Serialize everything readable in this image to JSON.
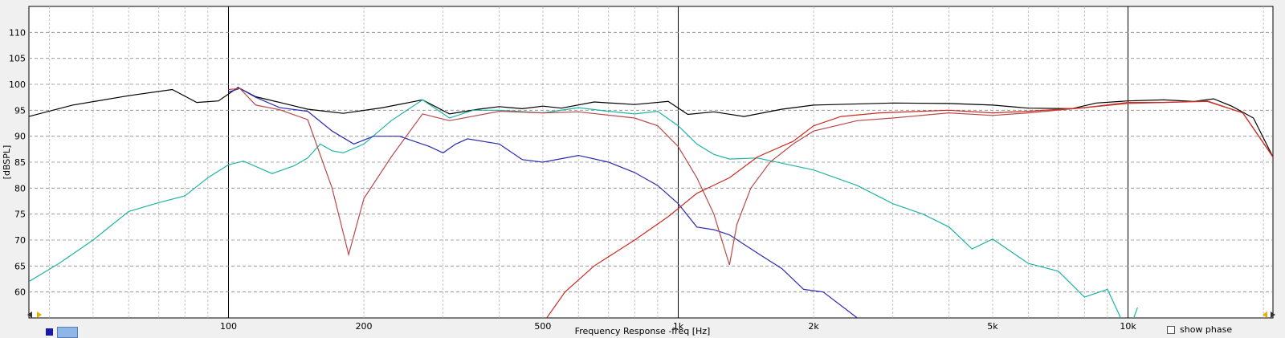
{
  "chart_data": {
    "type": "line",
    "xlabel": "Frequency Response -freq [Hz]",
    "ylabel": "[dBSPL]",
    "xscale": "log",
    "xlim": [
      36,
      21000
    ],
    "ylim": [
      55,
      115
    ],
    "yticks": [
      60,
      65,
      70,
      75,
      80,
      85,
      90,
      95,
      100,
      105,
      110
    ],
    "xtick_labels": [
      {
        "value": 100,
        "label": "100"
      },
      {
        "value": 200,
        "label": "200"
      },
      {
        "value": 500,
        "label": "500"
      },
      {
        "value": 1000,
        "label": "1k"
      },
      {
        "value": 2000,
        "label": "2k"
      },
      {
        "value": 5000,
        "label": "5k"
      },
      {
        "value": 10000,
        "label": "10k"
      }
    ],
    "grid": true,
    "series": [
      {
        "color": "#000000",
        "points": [
          [
            36,
            93.8
          ],
          [
            45,
            96
          ],
          [
            60,
            97.8
          ],
          [
            75,
            99
          ],
          [
            85,
            96.5
          ],
          [
            95,
            96.8
          ],
          [
            105,
            99.4
          ],
          [
            115,
            97.6
          ],
          [
            130,
            96.5
          ],
          [
            150,
            95.2
          ],
          [
            180,
            94.4
          ],
          [
            220,
            95.5
          ],
          [
            270,
            97
          ],
          [
            310,
            94.3
          ],
          [
            360,
            95.2
          ],
          [
            400,
            95.7
          ],
          [
            450,
            95.3
          ],
          [
            500,
            95.8
          ],
          [
            550,
            95.4
          ],
          [
            650,
            96.6
          ],
          [
            800,
            96.1
          ],
          [
            950,
            96.7
          ],
          [
            1050,
            94.2
          ],
          [
            1200,
            94.7
          ],
          [
            1400,
            93.8
          ],
          [
            1700,
            95.2
          ],
          [
            2000,
            96
          ],
          [
            3000,
            96.4
          ],
          [
            4000,
            96.3
          ],
          [
            5000,
            96
          ],
          [
            6000,
            95.4
          ],
          [
            7500,
            95.3
          ],
          [
            8500,
            96.4
          ],
          [
            10000,
            96.8
          ],
          [
            12000,
            97
          ],
          [
            14000,
            96.7
          ],
          [
            15500,
            97.2
          ],
          [
            17000,
            95.8
          ],
          [
            19000,
            93.5
          ],
          [
            21000,
            86
          ]
        ]
      },
      {
        "color": "#1fb3a6",
        "points": [
          [
            36,
            62
          ],
          [
            42,
            65.5
          ],
          [
            50,
            70
          ],
          [
            60,
            75.5
          ],
          [
            70,
            77.2
          ],
          [
            80,
            78.5
          ],
          [
            90,
            82
          ],
          [
            100,
            84.5
          ],
          [
            108,
            85.2
          ],
          [
            125,
            82.8
          ],
          [
            140,
            84.3
          ],
          [
            150,
            85.8
          ],
          [
            160,
            88.5
          ],
          [
            170,
            87.2
          ],
          [
            180,
            86.8
          ],
          [
            200,
            88.5
          ],
          [
            230,
            93
          ],
          [
            270,
            97
          ],
          [
            310,
            93.5
          ],
          [
            350,
            95
          ],
          [
            400,
            95
          ],
          [
            500,
            94.5
          ],
          [
            600,
            95.5
          ],
          [
            700,
            94.8
          ],
          [
            800,
            94.3
          ],
          [
            900,
            94.8
          ],
          [
            1000,
            92
          ],
          [
            1100,
            88.5
          ],
          [
            1200,
            86.5
          ],
          [
            1300,
            85.6
          ],
          [
            1500,
            85.8
          ],
          [
            2000,
            83.5
          ],
          [
            2500,
            80.5
          ],
          [
            3000,
            77
          ],
          [
            3500,
            75
          ],
          [
            4000,
            72.5
          ],
          [
            4500,
            68.3
          ],
          [
            5000,
            70.2
          ],
          [
            6000,
            65.5
          ],
          [
            7000,
            64
          ],
          [
            8000,
            59
          ],
          [
            9000,
            60.5
          ],
          [
            10000,
            52
          ],
          [
            10500,
            57
          ]
        ]
      },
      {
        "color": "#2a2ab0",
        "points": [
          [
            100,
            98.5
          ],
          [
            106,
            99.2
          ],
          [
            115,
            97.5
          ],
          [
            130,
            95.5
          ],
          [
            150,
            94.8
          ],
          [
            170,
            91
          ],
          [
            190,
            88.5
          ],
          [
            210,
            90
          ],
          [
            240,
            90
          ],
          [
            280,
            88
          ],
          [
            300,
            86.8
          ],
          [
            320,
            88.5
          ],
          [
            340,
            89.5
          ],
          [
            400,
            88.5
          ],
          [
            450,
            85.5
          ],
          [
            500,
            85
          ],
          [
            600,
            86.3
          ],
          [
            700,
            85
          ],
          [
            800,
            83
          ],
          [
            900,
            80.5
          ],
          [
            1000,
            77
          ],
          [
            1100,
            72.5
          ],
          [
            1200,
            72
          ],
          [
            1300,
            71
          ],
          [
            1500,
            67.5
          ],
          [
            1700,
            64.5
          ],
          [
            1900,
            60.5
          ],
          [
            2100,
            60
          ],
          [
            2500,
            55
          ]
        ]
      },
      {
        "color": "#b84a4a",
        "points": [
          [
            100,
            99
          ],
          [
            106,
            99.2
          ],
          [
            115,
            96
          ],
          [
            130,
            95.1
          ],
          [
            150,
            93.2
          ],
          [
            170,
            80
          ],
          [
            185,
            67.2
          ],
          [
            200,
            78
          ],
          [
            230,
            86
          ],
          [
            270,
            94.3
          ],
          [
            310,
            93
          ],
          [
            400,
            94.8
          ],
          [
            500,
            94.5
          ],
          [
            600,
            94.7
          ],
          [
            800,
            93.5
          ],
          [
            900,
            92
          ],
          [
            1000,
            88
          ],
          [
            1100,
            82
          ],
          [
            1200,
            75
          ],
          [
            1300,
            65.2
          ],
          [
            1350,
            73
          ],
          [
            1450,
            80
          ],
          [
            1600,
            85
          ],
          [
            1800,
            88.5
          ],
          [
            2000,
            91
          ],
          [
            2500,
            93
          ],
          [
            3000,
            93.5
          ],
          [
            4000,
            94.5
          ],
          [
            5000,
            94
          ],
          [
            6000,
            94.5
          ],
          [
            8000,
            95.5
          ],
          [
            10000,
            96.3
          ],
          [
            12000,
            96.5
          ],
          [
            15000,
            96.8
          ],
          [
            18000,
            94.5
          ],
          [
            21000,
            86
          ]
        ]
      },
      {
        "color": "#cc2a1e",
        "points": [
          [
            510,
            55
          ],
          [
            560,
            60
          ],
          [
            650,
            65
          ],
          [
            800,
            70
          ],
          [
            950,
            74.5
          ],
          [
            1100,
            79
          ],
          [
            1300,
            82
          ],
          [
            1500,
            86
          ],
          [
            1800,
            89
          ],
          [
            2000,
            92
          ],
          [
            2300,
            93.8
          ],
          [
            2800,
            94.5
          ],
          [
            4000,
            95
          ],
          [
            5000,
            94.5
          ],
          [
            6000,
            94.8
          ],
          [
            8000,
            95.5
          ],
          [
            10000,
            96.5
          ],
          [
            12000,
            96.5
          ],
          [
            15000,
            96.7
          ],
          [
            18000,
            94.5
          ],
          [
            21000,
            86
          ]
        ]
      }
    ]
  },
  "ui": {
    "show_phase_label": "show phase"
  }
}
